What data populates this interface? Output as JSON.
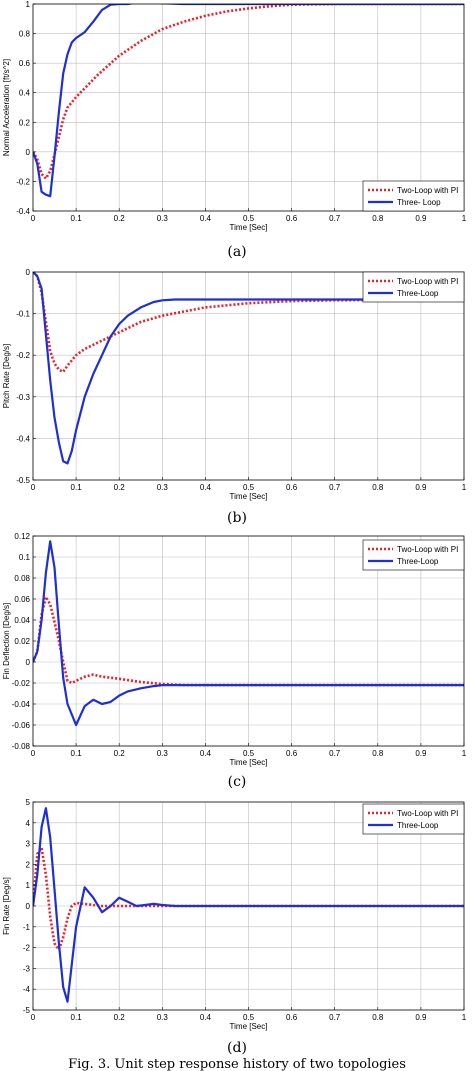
{
  "figure_caption": "Fig. 3. Unit step response history of two topologies",
  "chart_data": [
    {
      "type": "line",
      "sub_caption": "(a)",
      "xlabel": "Time [Sec]",
      "ylabel": "Normal Acceleration [ft/s^2]",
      "xlim": [
        0,
        1
      ],
      "ylim": [
        -0.4,
        1.0
      ],
      "xticks": [
        "0",
        "0.1",
        "0.2",
        "0.3",
        "0.4",
        "0.5",
        "0.6",
        "0.7",
        "0.8",
        "0.9",
        "1"
      ],
      "yticks": [
        "-0.4",
        "-0.2",
        "0",
        "0.2",
        "0.4",
        "0.6",
        "0.8",
        "1"
      ],
      "grid": true,
      "legend_position": "bottom-right",
      "series": [
        {
          "name": "Two-Loop with PI",
          "style": "dotted",
          "color": "#e8202a",
          "x": [
            0,
            0.01,
            0.02,
            0.03,
            0.04,
            0.05,
            0.06,
            0.07,
            0.08,
            0.1,
            0.12,
            0.15,
            0.2,
            0.25,
            0.3,
            0.35,
            0.4,
            0.45,
            0.5,
            0.55,
            0.6,
            0.7,
            0.8,
            0.9,
            1.0
          ],
          "y": [
            0,
            -0.05,
            -0.15,
            -0.18,
            -0.13,
            -0.02,
            0.1,
            0.22,
            0.3,
            0.37,
            0.43,
            0.52,
            0.65,
            0.75,
            0.83,
            0.88,
            0.92,
            0.95,
            0.97,
            0.985,
            0.995,
            1.0,
            1.0,
            1.0,
            1.0
          ]
        },
        {
          "name": "Three- Loop",
          "style": "solid",
          "color": "#1f2fd0",
          "x": [
            0,
            0.01,
            0.02,
            0.03,
            0.04,
            0.05,
            0.06,
            0.07,
            0.08,
            0.09,
            0.1,
            0.12,
            0.14,
            0.16,
            0.18,
            0.2,
            0.22,
            0.24,
            0.26,
            0.28,
            0.3,
            0.35,
            0.4,
            0.5,
            0.6,
            0.7,
            0.8,
            0.9,
            1.0
          ],
          "y": [
            0,
            -0.08,
            -0.27,
            -0.29,
            -0.3,
            -0.03,
            0.27,
            0.53,
            0.66,
            0.74,
            0.77,
            0.81,
            0.88,
            0.96,
            0.995,
            1.0,
            1.0,
            1.01,
            1.01,
            1.01,
            1.005,
            1.0,
            1.0,
            1.0,
            1.0,
            1.0,
            1.0,
            1.0,
            1.0
          ]
        }
      ]
    },
    {
      "type": "line",
      "sub_caption": "(b)",
      "xlabel": "Time [Sec]",
      "ylabel": "Pitch Rate [Deg/s]",
      "xlim": [
        0,
        1
      ],
      "ylim": [
        -0.5,
        0
      ],
      "xticks": [
        "0",
        "0.1",
        "0.2",
        "0.3",
        "0.4",
        "0.5",
        "0.6",
        "0.7",
        "0.8",
        "0.9",
        "1"
      ],
      "yticks": [
        "-0.5",
        "-0.4",
        "-0.3",
        "-0.2",
        "-0.1",
        "0"
      ],
      "grid": true,
      "legend_position": "top-right",
      "series": [
        {
          "name": "Two-Loop with PI",
          "style": "dotted",
          "color": "#e8202a",
          "x": [
            0,
            0.01,
            0.02,
            0.03,
            0.04,
            0.05,
            0.06,
            0.07,
            0.08,
            0.1,
            0.12,
            0.15,
            0.2,
            0.25,
            0.3,
            0.4,
            0.5,
            0.6,
            0.7,
            0.8,
            0.9,
            1.0
          ],
          "y": [
            0,
            -0.01,
            -0.05,
            -0.12,
            -0.19,
            -0.22,
            -0.235,
            -0.24,
            -0.225,
            -0.2,
            -0.185,
            -0.17,
            -0.145,
            -0.12,
            -0.105,
            -0.085,
            -0.075,
            -0.07,
            -0.068,
            -0.067,
            -0.066,
            -0.066
          ]
        },
        {
          "name": "Three-Loop",
          "style": "solid",
          "color": "#1f2fd0",
          "x": [
            0,
            0.01,
            0.02,
            0.03,
            0.04,
            0.05,
            0.06,
            0.07,
            0.08,
            0.09,
            0.1,
            0.12,
            0.14,
            0.16,
            0.18,
            0.2,
            0.22,
            0.25,
            0.28,
            0.3,
            0.33,
            0.35,
            0.4,
            0.5,
            0.6,
            0.7,
            0.8,
            0.9,
            1.0
          ],
          "y": [
            0,
            -0.01,
            -0.04,
            -0.15,
            -0.26,
            -0.35,
            -0.41,
            -0.455,
            -0.46,
            -0.43,
            -0.38,
            -0.3,
            -0.245,
            -0.2,
            -0.155,
            -0.125,
            -0.105,
            -0.085,
            -0.072,
            -0.068,
            -0.066,
            -0.066,
            -0.066,
            -0.066,
            -0.066,
            -0.066,
            -0.066,
            -0.066,
            -0.066
          ]
        }
      ]
    },
    {
      "type": "line",
      "sub_caption": "(c)",
      "xlabel": "Time [Sec]",
      "ylabel": "Fin Deflection [Deg/s]",
      "xlim": [
        0,
        1
      ],
      "ylim": [
        -0.08,
        0.12
      ],
      "xticks": [
        "0",
        "0.1",
        "0.2",
        "0.3",
        "0.4",
        "0.5",
        "0.6",
        "0.7",
        "0.8",
        "0.9",
        "1"
      ],
      "yticks": [
        "-0.08",
        "-0.06",
        "-0.04",
        "-0.02",
        "0",
        "0.02",
        "0.04",
        "0.06",
        "0.08",
        "0.1",
        "0.12"
      ],
      "grid": true,
      "legend_position": "top-right",
      "series": [
        {
          "name": "Two-Loop with PI",
          "style": "dotted",
          "color": "#e8202a",
          "x": [
            0,
            0.01,
            0.02,
            0.03,
            0.04,
            0.05,
            0.06,
            0.07,
            0.08,
            0.09,
            0.1,
            0.12,
            0.14,
            0.16,
            0.2,
            0.25,
            0.3,
            0.35,
            0.4,
            0.5,
            0.6,
            0.7,
            0.8,
            0.9,
            1.0
          ],
          "y": [
            0,
            0.01,
            0.045,
            0.062,
            0.055,
            0.038,
            0.02,
            0.0,
            -0.018,
            -0.02,
            -0.018,
            -0.014,
            -0.012,
            -0.014,
            -0.016,
            -0.019,
            -0.021,
            -0.022,
            -0.022,
            -0.022,
            -0.022,
            -0.022,
            -0.022,
            -0.022,
            -0.022
          ]
        },
        {
          "name": "Three-Loop",
          "style": "solid",
          "color": "#1f2fd0",
          "x": [
            0,
            0.01,
            0.02,
            0.03,
            0.04,
            0.05,
            0.06,
            0.07,
            0.08,
            0.09,
            0.1,
            0.12,
            0.14,
            0.16,
            0.18,
            0.2,
            0.22,
            0.25,
            0.28,
            0.3,
            0.35,
            0.4,
            0.5,
            0.6,
            0.7,
            0.8,
            0.9,
            1.0
          ],
          "y": [
            0,
            0.01,
            0.04,
            0.085,
            0.115,
            0.09,
            0.035,
            -0.015,
            -0.04,
            -0.05,
            -0.06,
            -0.042,
            -0.036,
            -0.04,
            -0.038,
            -0.032,
            -0.028,
            -0.025,
            -0.023,
            -0.022,
            -0.022,
            -0.022,
            -0.022,
            -0.022,
            -0.022,
            -0.022,
            -0.022,
            -0.022
          ]
        }
      ]
    },
    {
      "type": "line",
      "sub_caption": "(d)",
      "xlabel": "Time [Sec]",
      "ylabel": "Fin Rate [Deg/s]",
      "xlim": [
        0,
        1
      ],
      "ylim": [
        -5,
        5
      ],
      "xticks": [
        "0",
        "0.1",
        "0.2",
        "0.3",
        "0.4",
        "0.5",
        "0.6",
        "0.7",
        "0.8",
        "0.9",
        "1"
      ],
      "yticks": [
        "-5",
        "-4",
        "-3",
        "-2",
        "-1",
        "0",
        "1",
        "2",
        "3",
        "4",
        "5"
      ],
      "grid": true,
      "legend_position": "top-right",
      "series": [
        {
          "name": "Two-Loop with PI",
          "style": "dotted",
          "color": "#e8202a",
          "x": [
            0,
            0.01,
            0.02,
            0.03,
            0.04,
            0.05,
            0.06,
            0.07,
            0.08,
            0.09,
            0.1,
            0.12,
            0.14,
            0.16,
            0.2,
            0.25,
            0.3,
            0.4,
            0.5,
            0.6,
            0.7,
            0.8,
            0.9,
            1.0
          ],
          "y": [
            0,
            2.5,
            2.8,
            1.5,
            -0.5,
            -1.8,
            -2.1,
            -1.5,
            -0.6,
            0.0,
            0.15,
            0.1,
            0.05,
            0.0,
            0.0,
            0.0,
            0.0,
            0.0,
            0.0,
            0.0,
            0.0,
            0.0,
            0.0,
            0.0
          ]
        },
        {
          "name": "Three-Loop",
          "style": "solid",
          "color": "#1f2fd0",
          "x": [
            0,
            0.01,
            0.02,
            0.03,
            0.04,
            0.05,
            0.06,
            0.07,
            0.08,
            0.09,
            0.1,
            0.12,
            0.14,
            0.16,
            0.18,
            0.2,
            0.22,
            0.24,
            0.26,
            0.28,
            0.3,
            0.33,
            0.35,
            0.4,
            0.5,
            0.6,
            0.7,
            0.8,
            0.9,
            1.0
          ],
          "y": [
            0,
            1.5,
            3.8,
            4.7,
            3.3,
            0.8,
            -1.8,
            -3.9,
            -4.6,
            -2.8,
            -1.0,
            0.9,
            0.4,
            -0.3,
            0.0,
            0.4,
            0.2,
            0.0,
            0.05,
            0.1,
            0.05,
            0.0,
            0.0,
            0.0,
            0.0,
            0.0,
            0.0,
            0.0,
            0.0,
            0.0
          ]
        }
      ]
    }
  ]
}
